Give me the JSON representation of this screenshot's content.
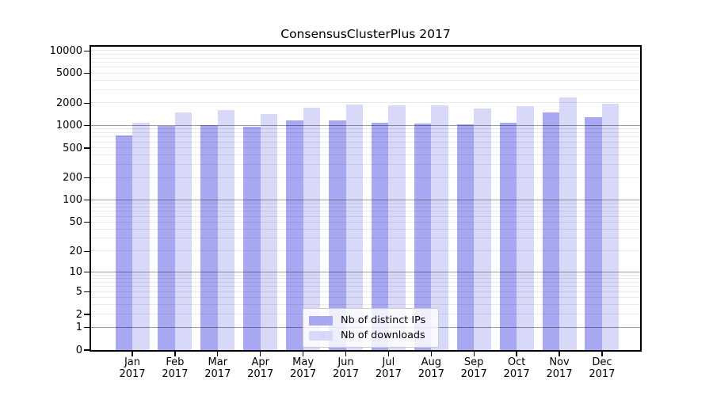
{
  "title": "ConsensusClusterPlus 2017",
  "colors": {
    "distinct_ips": "#a8a8f2",
    "downloads": "#d8d8f8",
    "major_grid": "#9b9b9b",
    "minor_grid": "#e8e8e8"
  },
  "legend": {
    "items": [
      {
        "label": "Nb of distinct IPs",
        "color_key": "distinct_ips"
      },
      {
        "label": "Nb of downloads",
        "color_key": "downloads"
      }
    ]
  },
  "chart_data": {
    "type": "bar",
    "title": "ConsensusClusterPlus 2017",
    "categories": [
      "Jan 2017",
      "Feb 2017",
      "Mar 2017",
      "Apr 2017",
      "May 2017",
      "Jun 2017",
      "Jul 2017",
      "Aug 2017",
      "Sep 2017",
      "Oct 2017",
      "Nov 2017",
      "Dec 2017"
    ],
    "series": [
      {
        "name": "Nb of distinct IPs",
        "values": [
          740,
          990,
          1020,
          970,
          1180,
          1170,
          1090,
          1060,
          1040,
          1110,
          1510,
          1300
        ]
      },
      {
        "name": "Nb of downloads",
        "values": [
          1110,
          1510,
          1630,
          1440,
          1750,
          1940,
          1860,
          1890,
          1720,
          1820,
          2420,
          1950
        ]
      }
    ],
    "yscale": "log1p",
    "yticks": [
      10000,
      5000,
      2000,
      1000,
      500,
      200,
      100,
      50,
      20,
      10,
      5,
      2,
      1,
      0
    ],
    "ylim": [
      0,
      10000
    ],
    "grid": "minor-and-major-horizontal",
    "legend_position": "bottom-center-inside",
    "xlabel": "",
    "ylabel": ""
  }
}
